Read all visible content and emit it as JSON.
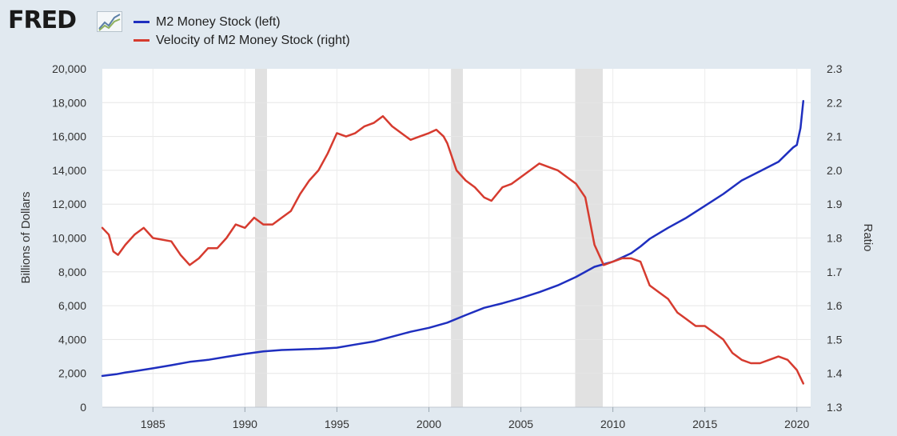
{
  "header": {
    "logo_text": "FRED",
    "logo_icon": "line-chart-icon"
  },
  "legend": [
    {
      "label": "M2 Money Stock (left)",
      "color": "#1f2fbf"
    },
    {
      "label": "Velocity of M2 Money Stock (right)",
      "color": "#d63b2f"
    }
  ],
  "chart_data": {
    "type": "line",
    "ylabel_left": "Billions of Dollars",
    "ylabel_right": "Ratio",
    "xlim": [
      1982.25,
      2020.75
    ],
    "ylim_left": [
      0,
      20000
    ],
    "ylim_right": [
      1.3,
      2.3
    ],
    "x_ticks": [
      1985,
      1990,
      1995,
      2000,
      2005,
      2010,
      2015,
      2020
    ],
    "y_ticks_left": [
      "0",
      "2,000",
      "4,000",
      "6,000",
      "8,000",
      "10,000",
      "12,000",
      "14,000",
      "16,000",
      "18,000",
      "20,000"
    ],
    "y_ticks_right": [
      "1.3",
      "1.4",
      "1.5",
      "1.6",
      "1.7",
      "1.8",
      "1.9",
      "2.0",
      "2.1",
      "2.2",
      "2.3"
    ],
    "grid": true,
    "recessions": [
      [
        1990.55,
        1991.2
      ],
      [
        2001.2,
        2001.85
      ],
      [
        2007.95,
        2009.45
      ]
    ],
    "series": [
      {
        "name": "M2 Money Stock (left)",
        "axis": "left",
        "color": "#1f2fbf",
        "points": [
          [
            1982.25,
            1850
          ],
          [
            1983,
            1950
          ],
          [
            1983.5,
            2050
          ],
          [
            1984,
            2130
          ],
          [
            1985,
            2300
          ],
          [
            1986,
            2480
          ],
          [
            1987,
            2680
          ],
          [
            1988,
            2800
          ],
          [
            1989,
            2980
          ],
          [
            1990,
            3150
          ],
          [
            1991,
            3300
          ],
          [
            1992,
            3380
          ],
          [
            1993,
            3420
          ],
          [
            1994,
            3450
          ],
          [
            1995,
            3520
          ],
          [
            1996,
            3700
          ],
          [
            1997,
            3880
          ],
          [
            1998,
            4170
          ],
          [
            1999,
            4460
          ],
          [
            2000,
            4690
          ],
          [
            2001,
            5000
          ],
          [
            2002,
            5440
          ],
          [
            2003,
            5870
          ],
          [
            2004,
            6140
          ],
          [
            2005,
            6450
          ],
          [
            2006,
            6800
          ],
          [
            2007,
            7200
          ],
          [
            2008,
            7700
          ],
          [
            2009,
            8300
          ],
          [
            2010,
            8600
          ],
          [
            2011,
            9100
          ],
          [
            2011.5,
            9500
          ],
          [
            2012,
            9950
          ],
          [
            2013,
            10600
          ],
          [
            2014,
            11200
          ],
          [
            2015,
            11900
          ],
          [
            2016,
            12600
          ],
          [
            2017,
            13400
          ],
          [
            2018,
            13950
          ],
          [
            2019,
            14500
          ],
          [
            2019.8,
            15350
          ],
          [
            2020.0,
            15500
          ],
          [
            2020.2,
            16500
          ],
          [
            2020.35,
            18100
          ]
        ]
      },
      {
        "name": "Velocity of M2 Money Stock (right)",
        "axis": "right",
        "color": "#d63b2f",
        "points": [
          [
            1982.25,
            1.83
          ],
          [
            1982.6,
            1.81
          ],
          [
            1982.85,
            1.76
          ],
          [
            1983.1,
            1.75
          ],
          [
            1983.5,
            1.78
          ],
          [
            1984,
            1.81
          ],
          [
            1984.5,
            1.83
          ],
          [
            1985,
            1.8
          ],
          [
            1986,
            1.79
          ],
          [
            1986.5,
            1.75
          ],
          [
            1987,
            1.72
          ],
          [
            1987.5,
            1.74
          ],
          [
            1988,
            1.77
          ],
          [
            1988.5,
            1.77
          ],
          [
            1989,
            1.8
          ],
          [
            1989.5,
            1.84
          ],
          [
            1990,
            1.83
          ],
          [
            1990.5,
            1.86
          ],
          [
            1991,
            1.84
          ],
          [
            1991.5,
            1.84
          ],
          [
            1992,
            1.86
          ],
          [
            1992.5,
            1.88
          ],
          [
            1993,
            1.93
          ],
          [
            1993.5,
            1.97
          ],
          [
            1994,
            2.0
          ],
          [
            1994.5,
            2.05
          ],
          [
            1995,
            2.11
          ],
          [
            1995.5,
            2.1
          ],
          [
            1996,
            2.11
          ],
          [
            1996.5,
            2.13
          ],
          [
            1997,
            2.14
          ],
          [
            1997.5,
            2.16
          ],
          [
            1998,
            2.13
          ],
          [
            1998.5,
            2.11
          ],
          [
            1999,
            2.09
          ],
          [
            1999.5,
            2.1
          ],
          [
            2000,
            2.11
          ],
          [
            2000.4,
            2.12
          ],
          [
            2000.8,
            2.1
          ],
          [
            2001,
            2.08
          ],
          [
            2001.5,
            2.0
          ],
          [
            2002,
            1.97
          ],
          [
            2002.5,
            1.95
          ],
          [
            2003,
            1.92
          ],
          [
            2003.4,
            1.91
          ],
          [
            2003.7,
            1.93
          ],
          [
            2004,
            1.95
          ],
          [
            2004.5,
            1.96
          ],
          [
            2005,
            1.98
          ],
          [
            2005.5,
            2.0
          ],
          [
            2006,
            2.02
          ],
          [
            2006.5,
            2.01
          ],
          [
            2007,
            2.0
          ],
          [
            2007.5,
            1.98
          ],
          [
            2008,
            1.96
          ],
          [
            2008.5,
            1.92
          ],
          [
            2009,
            1.78
          ],
          [
            2009.5,
            1.72
          ],
          [
            2010,
            1.73
          ],
          [
            2010.5,
            1.74
          ],
          [
            2011,
            1.74
          ],
          [
            2011.5,
            1.73
          ],
          [
            2012,
            1.66
          ],
          [
            2012.5,
            1.64
          ],
          [
            2013,
            1.62
          ],
          [
            2013.5,
            1.58
          ],
          [
            2014,
            1.56
          ],
          [
            2014.5,
            1.54
          ],
          [
            2015,
            1.54
          ],
          [
            2015.5,
            1.52
          ],
          [
            2016,
            1.5
          ],
          [
            2016.5,
            1.46
          ],
          [
            2017,
            1.44
          ],
          [
            2017.5,
            1.43
          ],
          [
            2018,
            1.43
          ],
          [
            2018.5,
            1.44
          ],
          [
            2019,
            1.45
          ],
          [
            2019.5,
            1.44
          ],
          [
            2020,
            1.41
          ],
          [
            2020.35,
            1.37
          ]
        ]
      }
    ]
  }
}
